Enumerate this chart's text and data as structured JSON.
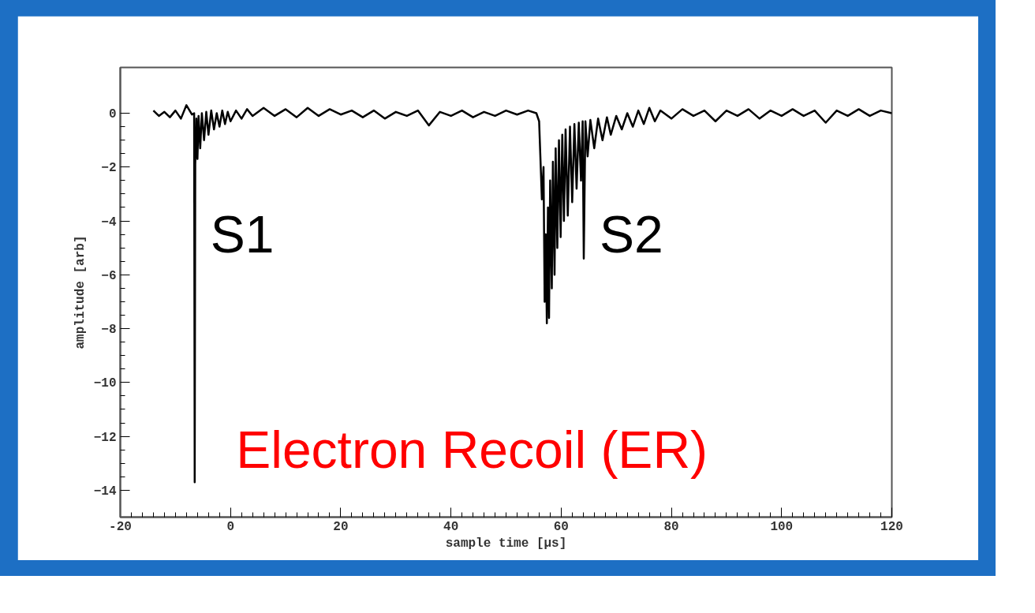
{
  "chart_data": {
    "type": "line",
    "xlabel": "sample time [µs]",
    "ylabel": "amplitude [arb]",
    "x": [
      -14,
      -13,
      -12,
      -11,
      -10,
      -9,
      -8,
      -7,
      -6.6,
      -6.5,
      -6.4,
      -6.2,
      -6.0,
      -5.8,
      -5.5,
      -5.2,
      -4.8,
      -4.4,
      -4.0,
      -3.5,
      -3.0,
      -2.5,
      -2.0,
      -1.5,
      -1.0,
      -0.5,
      0,
      1,
      2,
      3,
      4,
      6,
      8,
      10,
      12,
      14,
      16,
      18,
      20,
      22,
      24,
      26,
      28,
      30,
      32,
      34,
      36,
      38,
      40,
      42,
      44,
      46,
      48,
      50,
      52,
      54,
      55.5,
      56,
      56.5,
      56.8,
      57.0,
      57.2,
      57.4,
      57.6,
      57.8,
      58.0,
      58.3,
      58.5,
      58.8,
      59.0,
      59.3,
      59.6,
      59.9,
      60.2,
      60.5,
      60.8,
      61.2,
      61.6,
      62.0,
      62.4,
      62.8,
      63.2,
      63.6,
      63.9,
      64.1,
      64.4,
      64.8,
      65.3,
      66,
      66.7,
      67.5,
      68.3,
      69,
      70,
      71,
      72,
      73,
      74,
      75,
      76,
      77,
      78,
      80,
      82,
      84,
      86,
      88,
      90,
      92,
      94,
      96,
      98,
      100,
      102,
      104,
      106,
      108,
      110,
      112,
      114,
      116,
      118,
      120
    ],
    "series": [
      {
        "color": "#000000",
        "values": [
          0.1,
          -0.1,
          0.05,
          -0.15,
          0.1,
          -0.2,
          0.3,
          -0.05,
          0,
          -13.7,
          -1.9,
          -0.2,
          -1.7,
          -0.1,
          -1.3,
          0,
          -1.0,
          0.05,
          -0.8,
          0.1,
          -0.6,
          0,
          -0.5,
          0.1,
          -0.4,
          0.05,
          -0.3,
          0.1,
          -0.2,
          0.15,
          -0.1,
          0.2,
          -0.1,
          0.15,
          -0.15,
          0.2,
          -0.1,
          0.15,
          -0.05,
          0.1,
          -0.15,
          0.1,
          -0.2,
          0.05,
          -0.1,
          0.1,
          -0.45,
          0.05,
          -0.1,
          0.1,
          -0.15,
          0.05,
          -0.1,
          0.1,
          -0.05,
          0.1,
          0,
          -0.3,
          -3.2,
          -2.0,
          -7.0,
          -4.5,
          -7.8,
          -3.5,
          -7.6,
          -2.5,
          -6.5,
          -1.8,
          -6.0,
          -1.3,
          -5.0,
          -1.0,
          -4.6,
          -0.8,
          -4.0,
          -0.6,
          -3.8,
          -0.5,
          -3.3,
          -0.4,
          -2.8,
          -0.35,
          -2.5,
          -0.3,
          -5.4,
          -0.3,
          -1.6,
          -0.25,
          -1.3,
          -0.2,
          -1.0,
          -0.15,
          -0.8,
          -0.1,
          -0.6,
          0.0,
          -0.5,
          0.1,
          -0.4,
          0.2,
          -0.3,
          0.1,
          -0.2,
          0.15,
          -0.1,
          0.1,
          -0.3,
          0.1,
          -0.1,
          0.15,
          -0.2,
          0.1,
          -0.1,
          0.15,
          -0.1,
          0.1,
          -0.35,
          0.1,
          -0.1,
          0.15,
          -0.1,
          0.1,
          0.0
        ]
      }
    ],
    "xlim": [
      -20,
      120
    ],
    "ylim": [
      -15,
      1.7
    ],
    "xticks": [
      -20,
      0,
      20,
      40,
      60,
      80,
      100,
      120
    ],
    "yticks": [
      {
        "value": 0,
        "label": "0"
      },
      {
        "value": -2,
        "label": "−2"
      },
      {
        "value": -4,
        "label": "−4"
      },
      {
        "value": -6,
        "label": "−6"
      },
      {
        "value": -8,
        "label": "−8"
      },
      {
        "value": -10,
        "label": "−10"
      },
      {
        "value": -12,
        "label": "−12"
      },
      {
        "value": -14,
        "label": "−14"
      }
    ],
    "annotations": [
      {
        "text": "S1",
        "x": -6.5,
        "y": -4.5
      },
      {
        "text": "S2",
        "x": 64.1,
        "y": -4.5
      },
      "Electron Recoil (ER)"
    ],
    "grid": false,
    "line_style": "solid",
    "marker": "none"
  }
}
